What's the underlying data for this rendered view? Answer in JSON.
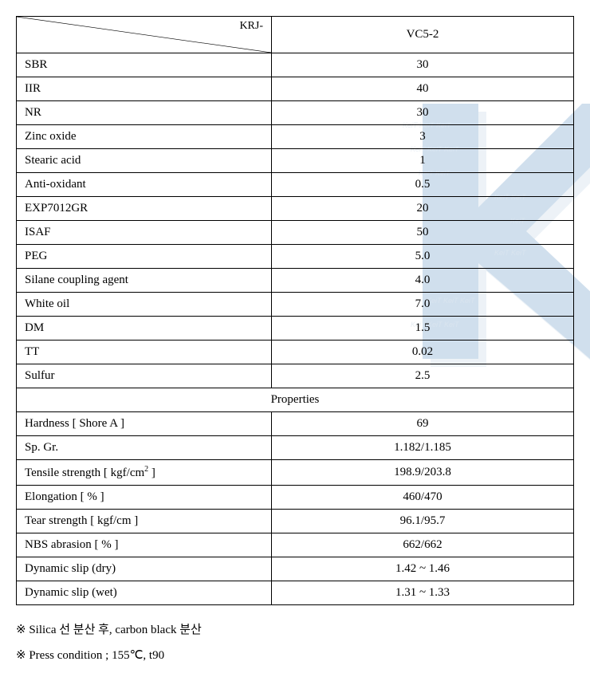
{
  "header": {
    "diag_label": "KRJ-",
    "col_label": "VC5-2"
  },
  "formulation_rows": [
    {
      "label": "SBR",
      "value": "30"
    },
    {
      "label": "IIR",
      "value": "40"
    },
    {
      "label": "NR",
      "value": "30"
    },
    {
      "label": "Zinc oxide",
      "value": "3"
    },
    {
      "label": "Stearic acid",
      "value": "1"
    },
    {
      "label": "Anti-oxidant",
      "value": "0.5"
    },
    {
      "label": "EXP7012GR",
      "value": "20"
    },
    {
      "label": "ISAF",
      "value": "50"
    },
    {
      "label": "PEG",
      "value": "5.0"
    },
    {
      "label": "Silane coupling agent",
      "value": "4.0"
    },
    {
      "label": "White oil",
      "value": "7.0"
    },
    {
      "label": "DM",
      "value": "1.5"
    },
    {
      "label": "TT",
      "value": "0.02"
    },
    {
      "label": "Sulfur",
      "value": "2.5"
    }
  ],
  "section_label": "Properties",
  "property_rows": [
    {
      "label": "Hardness [ Shore A ]",
      "value": "69"
    },
    {
      "label": "Sp. Gr.",
      "value": "1.182/1.185"
    },
    {
      "label_html": "Tensile strength [ kgf/cm<sup>2</sup> ]",
      "value": "198.9/203.8"
    },
    {
      "label": "Elongation [ % ]",
      "value": "460/470"
    },
    {
      "label": "Tear strength [ kgf/cm ]",
      "value": "96.1/95.7"
    },
    {
      "label": "NBS abrasion [ % ]",
      "value": "662/662"
    },
    {
      "label": "Dynamic slip (dry)",
      "value": "1.42 ~ 1.46"
    },
    {
      "label": "Dynamic slip (wet)",
      "value": "1.31 ~ 1.33"
    }
  ],
  "footnotes": [
    "※ Silica 선 분산 후, carbon black 분산",
    "※ Press condition ; 155℃,  t90"
  ],
  "watermark": {
    "color_main": "#6b9bc9",
    "color_shadow": "#c7d9e8",
    "text_color": "#9fb9d1"
  }
}
